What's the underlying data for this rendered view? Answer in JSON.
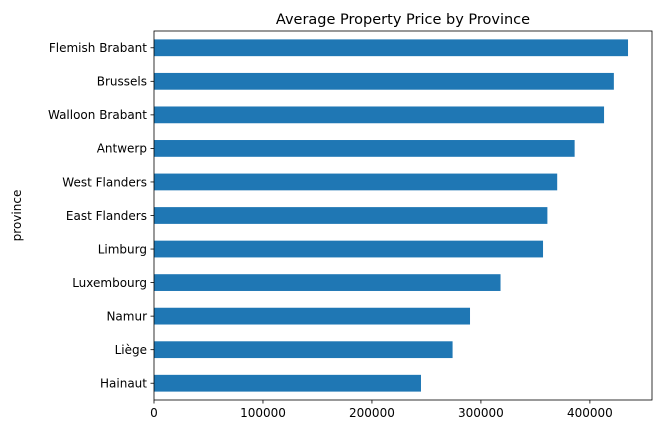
{
  "chart_data": {
    "type": "bar",
    "orientation": "horizontal",
    "title": "Average Property Price by Province",
    "xlabel": "",
    "ylabel": "province",
    "categories": [
      "Flemish Brabant",
      "Brussels",
      "Walloon Brabant",
      "Antwerp",
      "West Flanders",
      "East Flanders",
      "Limburg",
      "Luxembourg",
      "Namur",
      "Liège",
      "Hainaut"
    ],
    "values": [
      435000,
      422000,
      413000,
      386000,
      370000,
      361000,
      357000,
      318000,
      290000,
      274000,
      245000
    ],
    "xlim": [
      0,
      457000
    ],
    "xticks": [
      0,
      100000,
      200000,
      300000,
      400000
    ],
    "xtick_labels": [
      "0",
      "100000",
      "200000",
      "300000",
      "400000"
    ],
    "bar_color": "#1f77b4",
    "grid": false,
    "legend": "none"
  }
}
